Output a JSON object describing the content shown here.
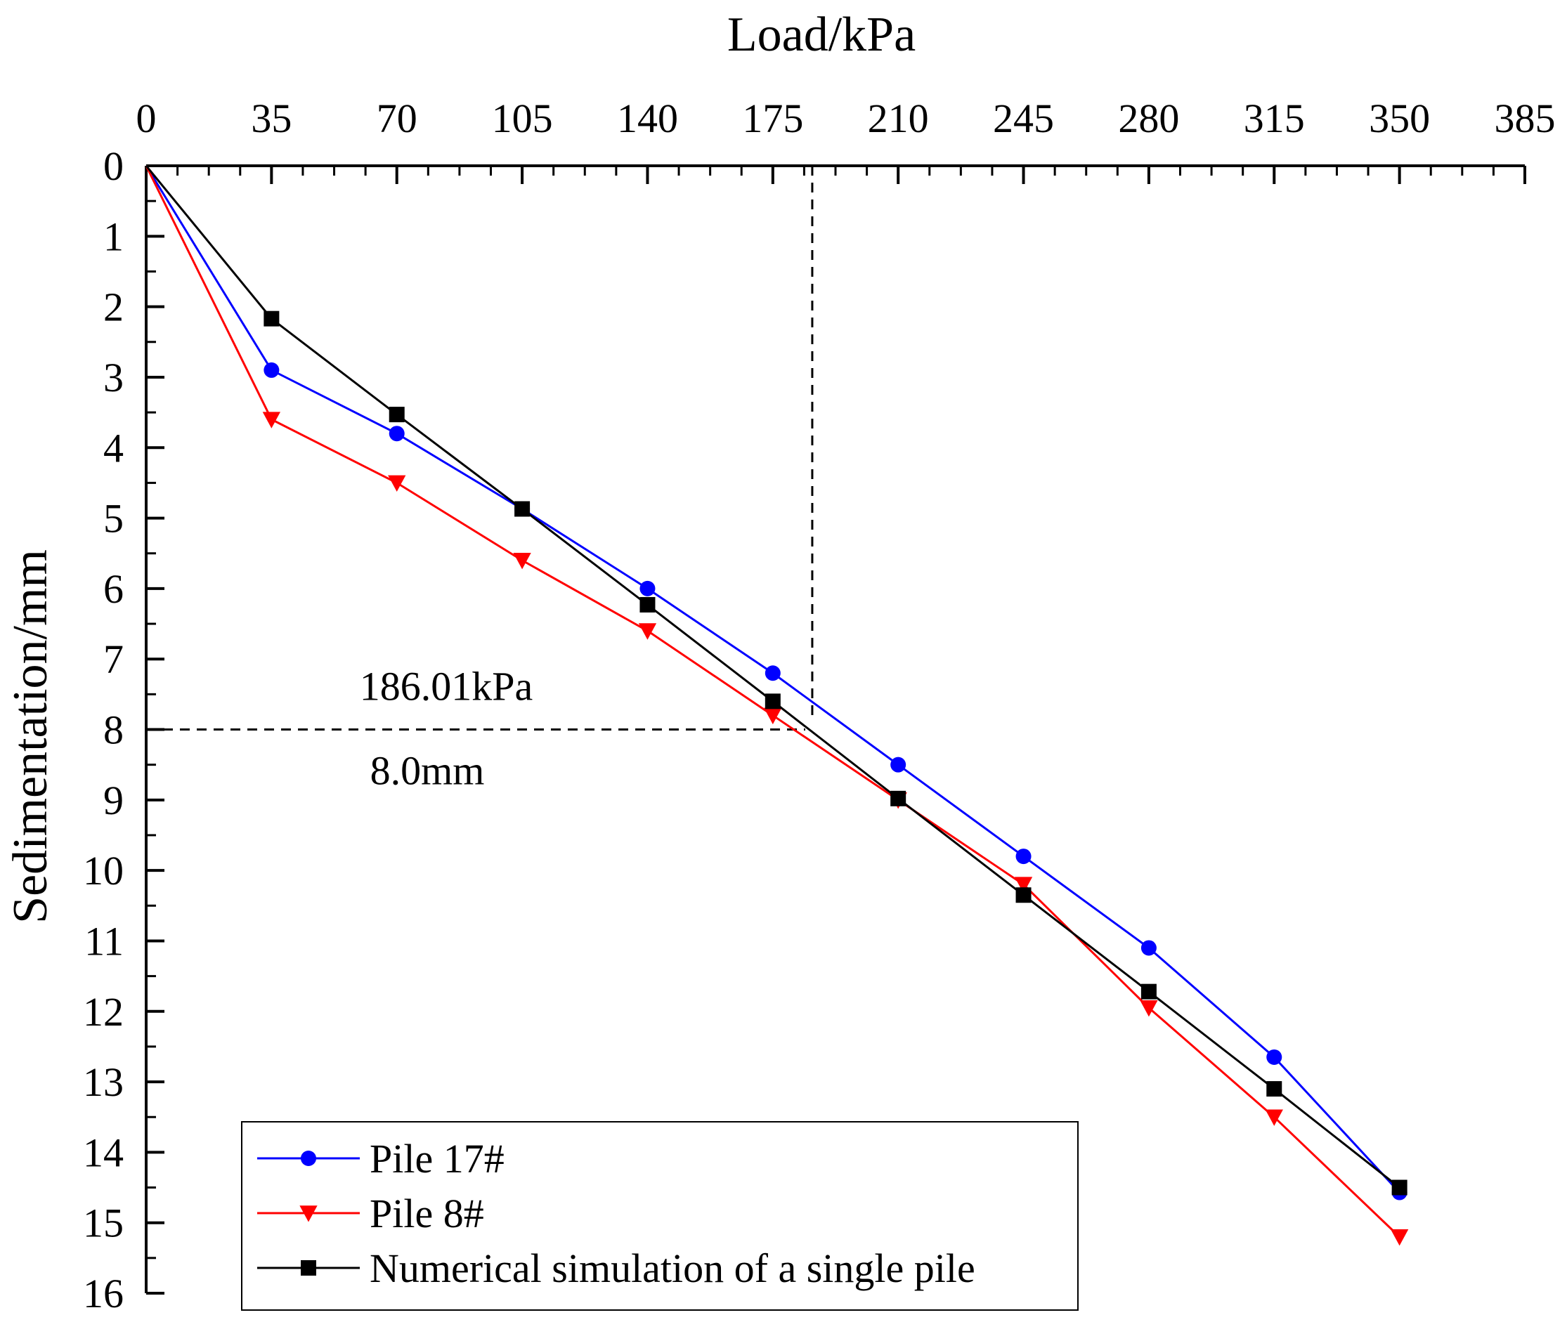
{
  "chart_data": {
    "type": "line",
    "xlabel": "Load/kPa",
    "ylabel": "Sedimentation/mm",
    "x_axis_position": "top",
    "y_inverted": true,
    "xlim": [
      0,
      385
    ],
    "ylim": [
      0,
      16
    ],
    "xticks": [
      0,
      35,
      70,
      105,
      140,
      175,
      210,
      245,
      280,
      315,
      350,
      385
    ],
    "xtick_labels": [
      "0",
      "35",
      "70",
      "105",
      "140",
      "175",
      "210",
      "245",
      "280",
      "315",
      "350",
      "385"
    ],
    "yticks": [
      0,
      1,
      2,
      3,
      4,
      5,
      6,
      7,
      8,
      9,
      10,
      11,
      12,
      13,
      14,
      15,
      16
    ],
    "ytick_labels": [
      "0",
      "1",
      "2",
      "3",
      "4",
      "5",
      "6",
      "7",
      "8",
      "9",
      "10",
      "11",
      "12",
      "13",
      "14",
      "15",
      "16"
    ],
    "grid": false,
    "legend_position": "bottom-left",
    "x": [
      0,
      35,
      70,
      105,
      140,
      175,
      210,
      245,
      280,
      315,
      350
    ],
    "series": [
      {
        "name": "Pile 17#",
        "color": "#0000ff",
        "marker": "circle",
        "values": [
          0,
          2.9,
          3.8,
          4.87,
          6.0,
          7.2,
          8.5,
          9.8,
          11.1,
          12.65,
          14.57
        ]
      },
      {
        "name": "Pile 8#",
        "color": "#ff0000",
        "marker": "triangle-down",
        "values": [
          0,
          3.6,
          4.5,
          5.6,
          6.6,
          7.8,
          9.0,
          10.2,
          11.95,
          13.5,
          15.2
        ]
      },
      {
        "name": "Numerical simulation of a single pile",
        "color": "#000000",
        "marker": "square",
        "values": [
          0,
          2.17,
          3.53,
          4.87,
          6.23,
          7.6,
          8.98,
          10.35,
          11.72,
          13.1,
          14.5
        ]
      }
    ],
    "reference_lines": {
      "x_value": 186.01,
      "y_value": 8.0,
      "x_label": "186.01kPa",
      "y_label": "8.0mm"
    }
  }
}
